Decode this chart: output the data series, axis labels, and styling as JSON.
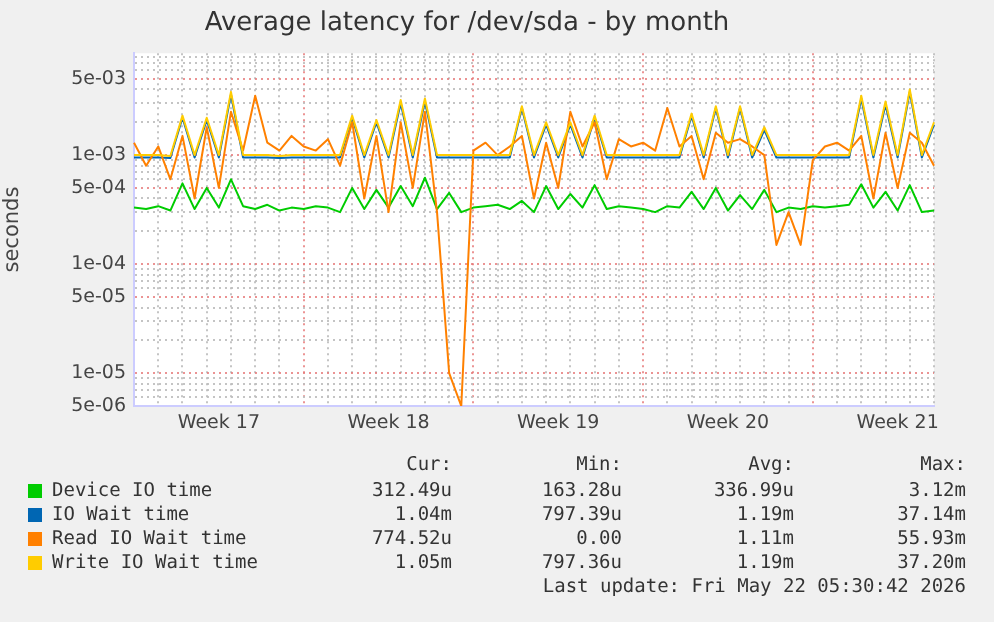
{
  "chart_data": {
    "type": "line",
    "title": "Average latency for /dev/sda - by month",
    "ylabel": "seconds",
    "log": "y",
    "grid": true,
    "legend": "bottom",
    "marker": "none",
    "line_style": "solid",
    "categories": [
      null,
      null,
      null,
      null,
      null,
      null,
      null,
      "Week 17",
      null,
      null,
      null,
      null,
      null,
      null,
      null,
      null,
      null,
      null,
      null,
      null,
      null,
      "Week 18",
      null,
      null,
      null,
      null,
      null,
      null,
      null,
      null,
      null,
      null,
      null,
      null,
      null,
      "Week 19",
      null,
      null,
      null,
      null,
      null,
      null,
      null,
      null,
      null,
      null,
      null,
      null,
      null,
      "Week 20",
      null,
      null,
      null,
      null,
      null,
      null,
      null,
      null,
      null,
      null,
      null,
      null,
      null,
      "Week 21",
      null,
      null,
      null
    ],
    "ylim": [
      5e-06,
      0.0086
    ],
    "yticks": [
      {
        "value": 5e-06,
        "label": "5e-06"
      },
      {
        "value": 6e-06,
        "label": null
      },
      {
        "value": 7e-06,
        "label": null
      },
      {
        "value": 8e-06,
        "label": null
      },
      {
        "value": 9e-06,
        "label": null
      },
      {
        "value": 1e-05,
        "label": "1e-05"
      },
      {
        "value": 2e-05,
        "label": null
      },
      {
        "value": 3e-05,
        "label": null
      },
      {
        "value": 4e-05,
        "label": null
      },
      {
        "value": 5e-05,
        "label": "5e-05"
      },
      {
        "value": 6e-05,
        "label": null
      },
      {
        "value": 7e-05,
        "label": null
      },
      {
        "value": 8e-05,
        "label": null
      },
      {
        "value": 9e-05,
        "label": null
      },
      {
        "value": 0.0001,
        "label": "1e-04"
      },
      {
        "value": 0.0002,
        "label": null
      },
      {
        "value": 0.0003,
        "label": null
      },
      {
        "value": 0.0004,
        "label": null
      },
      {
        "value": 0.0005,
        "label": "5e-04"
      },
      {
        "value": 0.0006,
        "label": null
      },
      {
        "value": 0.0007,
        "label": null
      },
      {
        "value": 0.0008,
        "label": null
      },
      {
        "value": 0.0009,
        "label": null
      },
      {
        "value": 0.001,
        "label": "1e-03"
      },
      {
        "value": 0.002,
        "label": null
      },
      {
        "value": 0.003,
        "label": null
      },
      {
        "value": 0.004,
        "label": null
      },
      {
        "value": 0.005,
        "label": "5e-03"
      },
      {
        "value": 0.006,
        "label": null
      },
      {
        "value": 0.007,
        "label": null
      },
      {
        "value": 0.008,
        "label": null
      }
    ],
    "series": [
      {
        "name": "Device IO time",
        "color": "#00cc00",
        "values": [
          0.00033,
          0.00032,
          0.00034,
          0.00031,
          0.00055,
          0.00032,
          0.0005,
          0.00033,
          0.0006,
          0.00034,
          0.00032,
          0.00035,
          0.00031,
          0.00033,
          0.00032,
          0.00034,
          0.00033,
          0.0003,
          0.0005,
          0.00032,
          0.00048,
          0.00033,
          0.00052,
          0.00034,
          0.00062,
          0.00032,
          0.00045,
          0.0003,
          0.00033,
          0.00034,
          0.00035,
          0.00032,
          0.00038,
          0.0003,
          0.00052,
          0.00032,
          0.00044,
          0.00033,
          0.00053,
          0.00032,
          0.00034,
          0.00033,
          0.00032,
          0.0003,
          0.00034,
          0.00033,
          0.00046,
          0.00032,
          0.0005,
          0.00031,
          0.00043,
          0.00032,
          0.00048,
          0.0003,
          0.00033,
          0.00032,
          0.00034,
          0.00033,
          0.00034,
          0.00035,
          0.00054,
          0.00033,
          0.00046,
          0.00031,
          0.00053,
          0.0003,
          0.00031
        ]
      },
      {
        "name": "IO Wait time",
        "color": "#0066b3",
        "values": [
          0.00095,
          0.00095,
          0.00095,
          0.00094,
          0.0022,
          0.00095,
          0.0021,
          0.00095,
          0.0036,
          0.00095,
          0.00095,
          0.00095,
          0.00094,
          0.00095,
          0.00095,
          0.00095,
          0.00095,
          0.00095,
          0.0022,
          0.00095,
          0.002,
          0.00095,
          0.003,
          0.00095,
          0.0031,
          0.00095,
          0.00095,
          0.00095,
          0.00095,
          0.00095,
          0.00095,
          0.00095,
          0.0027,
          0.00095,
          0.0019,
          0.00095,
          0.0019,
          0.00095,
          0.0022,
          0.00095,
          0.00095,
          0.00095,
          0.00095,
          0.00095,
          0.00095,
          0.00095,
          0.0023,
          0.00095,
          0.0027,
          0.00095,
          0.0027,
          0.00095,
          0.0017,
          0.00095,
          0.00095,
          0.00095,
          0.00095,
          0.00095,
          0.00095,
          0.00095,
          0.0033,
          0.00095,
          0.0029,
          0.00095,
          0.0038,
          0.00095,
          0.0019
        ]
      },
      {
        "name": "Read IO Wait time",
        "color": "#ff8000",
        "values": [
          0.0013,
          0.0008,
          0.0012,
          0.0006,
          0.0015,
          0.0004,
          0.0018,
          0.0005,
          0.0025,
          0.0011,
          0.0035,
          0.0013,
          0.0011,
          0.0015,
          0.0012,
          0.0011,
          0.0014,
          0.0008,
          0.002,
          0.0004,
          0.0015,
          0.0003,
          0.002,
          0.0005,
          0.0025,
          0.0003,
          1e-05,
          5e-06,
          0.0011,
          0.0013,
          0.001,
          0.0012,
          0.0015,
          0.0004,
          0.0013,
          0.0005,
          0.0025,
          0.0012,
          0.002,
          0.0006,
          0.0014,
          0.0012,
          0.0013,
          0.0011,
          0.0027,
          0.0012,
          0.0015,
          0.0006,
          0.0016,
          0.0013,
          0.0014,
          0.0012,
          0.001,
          0.00015,
          0.0003,
          0.00015,
          0.0009,
          0.0012,
          0.0013,
          0.0011,
          0.0015,
          0.0004,
          0.0016,
          0.0005,
          0.0016,
          0.0013,
          0.0008
        ]
      },
      {
        "name": "Write IO Wait time",
        "color": "#ffcc00",
        "values": [
          0.001,
          0.001,
          0.001,
          0.00098,
          0.0023,
          0.001,
          0.0022,
          0.001,
          0.0038,
          0.001,
          0.001,
          0.001,
          0.00098,
          0.001,
          0.001,
          0.001,
          0.001,
          0.001,
          0.0023,
          0.001,
          0.0021,
          0.001,
          0.0032,
          0.001,
          0.0033,
          0.001,
          0.001,
          0.001,
          0.001,
          0.001,
          0.001,
          0.001,
          0.0028,
          0.001,
          0.002,
          0.001,
          0.002,
          0.001,
          0.0023,
          0.001,
          0.001,
          0.001,
          0.001,
          0.001,
          0.001,
          0.001,
          0.0024,
          0.001,
          0.0028,
          0.001,
          0.0028,
          0.001,
          0.0018,
          0.001,
          0.001,
          0.001,
          0.001,
          0.001,
          0.001,
          0.001,
          0.0035,
          0.001,
          0.0031,
          0.001,
          0.004,
          0.001,
          0.002
        ]
      }
    ],
    "annotations": [
      "Cur:",
      "Min:",
      "Avg:",
      "Max:",
      "312.49u",
      "163.28u",
      "336.99u",
      "3.12m",
      "1.04m",
      "797.39u",
      "1.19m",
      "37.14m",
      "774.52u",
      "0.00",
      "1.11m",
      "55.93m",
      "1.05m",
      "797.36u",
      "1.19m",
      "37.20m",
      "Last update: Fri May 22 05:30:42 2026"
    ]
  }
}
